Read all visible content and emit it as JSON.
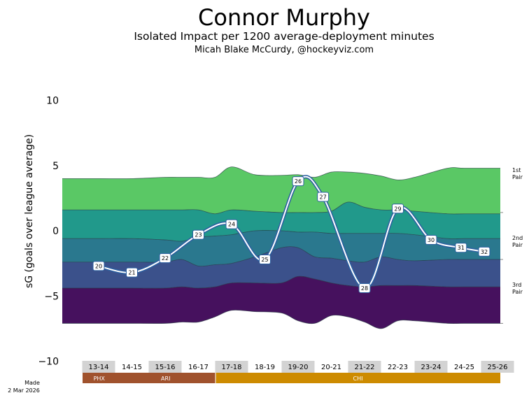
{
  "title": "Connor Murphy",
  "subtitle": "Isolated Impact per 1200 average-deployment minutes",
  "author": "Micah Blake McCurdy, @hockeyviz.com",
  "footer": {
    "line1": "Made",
    "line2": "2 Mar 2026"
  },
  "chart_data": {
    "type": "area",
    "ylabel": "sG (goals over league average)",
    "ylim": [
      -10,
      10
    ],
    "yticks": [
      10,
      5,
      0,
      -5,
      -10
    ],
    "grid": false,
    "seasons": [
      "13-14",
      "14-15",
      "15-16",
      "16-17",
      "17-18",
      "18-19",
      "19-20",
      "20-21",
      "21-22",
      "22-23",
      "23-24",
      "24-25",
      "25-26"
    ],
    "band_boundaries": [
      [
        4.0,
        4.0,
        4.1,
        4.1,
        4.1,
        4.1,
        4.9,
        4.3,
        4.25,
        4.3,
        4.1,
        4.5,
        4.5,
        4.4,
        4.2,
        3.9,
        4.1,
        4.8,
        4.8
      ],
      [
        1.6,
        1.6,
        1.6,
        1.6,
        1.6,
        1.3,
        1.6,
        1.5,
        1.4,
        1.4,
        1.4,
        1.5,
        2.2,
        1.8,
        1.6,
        1.6,
        1.5,
        1.3,
        1.3
      ],
      [
        -0.6,
        -0.6,
        -0.7,
        -0.8,
        -0.5,
        -0.4,
        -0.3,
        0.0,
        0.0,
        -0.1,
        -0.1,
        -0.2,
        -0.2,
        -0.2,
        -0.2,
        -0.2,
        -0.3,
        -0.6,
        -0.6
      ],
      [
        -2.4,
        -2.4,
        -2.4,
        -2.2,
        -2.7,
        -2.6,
        -2.5,
        -2.0,
        -1.3,
        -1.3,
        -2.0,
        -2.1,
        -2.3,
        -2.4,
        -2.0,
        -2.2,
        -2.3,
        -2.2,
        -2.2
      ],
      [
        -4.4,
        -4.4,
        -4.4,
        -4.3,
        -4.4,
        -4.3,
        -4.0,
        -4.0,
        -4.0,
        -3.5,
        -3.7,
        -4.0,
        -4.2,
        -4.3,
        -4.2,
        -4.2,
        -4.2,
        -4.3,
        -4.3
      ],
      [
        -7.1,
        -7.1,
        -7.1,
        -7.0,
        -7.0,
        -6.6,
        -6.1,
        -6.2,
        -6.3,
        -6.9,
        -7.1,
        -6.5,
        -6.6,
        -7.0,
        -7.5,
        -6.9,
        -6.9,
        -7.1,
        -7.1
      ]
    ],
    "band_boundary_x": [
      0,
      1,
      2,
      2.5,
      3,
      3.5,
      4,
      4.7,
      5.5,
      6,
      6.5,
      7,
      7.5,
      8,
      8.5,
      9,
      9.5,
      10.5,
      11
    ],
    "band_colors": [
      "#5ac865",
      "#21998b",
      "#2a788e",
      "#3b518b",
      "#46115e"
    ],
    "band_line_color": "#22353f",
    "band_labels": [
      {
        "text": [
          "1st",
          "Pair"
        ],
        "y": 4.5
      },
      {
        "text": [
          "2nd",
          "Pair"
        ],
        "y": -0.7
      },
      {
        "text": [
          "3rd",
          "Pair"
        ],
        "y": -4.3
      }
    ],
    "ref_lines": [
      1.4,
      -2.2,
      -7.1
    ],
    "player_line": {
      "points": [
        {
          "x": 0.0,
          "y": -2.7,
          "label": "20"
        },
        {
          "x": 1.0,
          "y": -3.2,
          "label": "21"
        },
        {
          "x": 2.0,
          "y": -2.1,
          "label": "22"
        },
        {
          "x": 3.0,
          "y": -0.3,
          "label": "23"
        },
        {
          "x": 4.0,
          "y": 0.5,
          "label": "24"
        },
        {
          "x": 5.0,
          "y": -2.2,
          "label": "25"
        },
        {
          "x": 6.0,
          "y": 3.8,
          "label": "26"
        },
        {
          "x": 6.75,
          "y": 2.6,
          "label": "27"
        },
        {
          "x": 8.0,
          "y": -4.4,
          "label": "28"
        },
        {
          "x": 9.0,
          "y": 1.7,
          "label": "29"
        },
        {
          "x": 10.0,
          "y": -0.7,
          "label": "30"
        },
        {
          "x": 10.9,
          "y": -1.3,
          "label": "31"
        },
        {
          "x": 11.6,
          "y": -1.6,
          "label": "32"
        }
      ],
      "stroke": "#2b5fa0",
      "fill": "#ffffff"
    },
    "season_shading": [
      true,
      false,
      true,
      false,
      true,
      false,
      true,
      false,
      true,
      false,
      true,
      false,
      true
    ],
    "teams": [
      {
        "name": "PHX",
        "start": 0,
        "end": 1,
        "color": "#a0522d"
      },
      {
        "name": "ARI",
        "start": 1,
        "end": 4,
        "color": "#a0522d"
      },
      {
        "name": "CHI",
        "start": 4,
        "end": 13,
        "color": "#cd8b00"
      }
    ]
  }
}
